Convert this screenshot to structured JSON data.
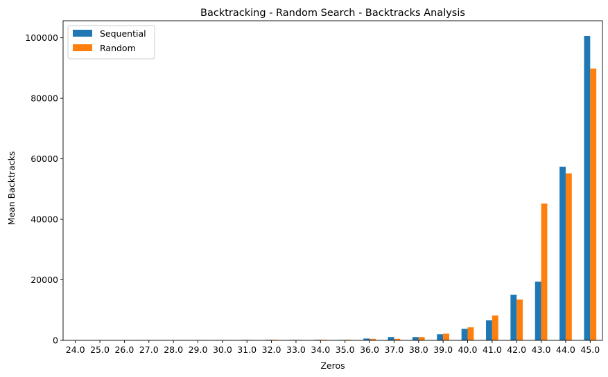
{
  "chart_data": {
    "type": "bar",
    "title": "Backtracking - Random Search - Backtracks Analysis",
    "xlabel": "Zeros",
    "ylabel": "Mean Backtracks",
    "categories": [
      "24.0",
      "25.0",
      "26.0",
      "27.0",
      "28.0",
      "29.0",
      "30.0",
      "31.0",
      "32.0",
      "33.0",
      "34.0",
      "35.0",
      "36.0",
      "37.0",
      "38.0",
      "39.0",
      "40.0",
      "41.0",
      "42.0",
      "43.0",
      "44.0",
      "45.0"
    ],
    "series": [
      {
        "name": "Sequential",
        "color": "#1f77b4",
        "values": [
          5,
          10,
          15,
          25,
          40,
          60,
          100,
          150,
          180,
          150,
          180,
          150,
          600,
          1100,
          1100,
          2000,
          3800,
          6600,
          15100,
          19400,
          57400,
          100600
        ]
      },
      {
        "name": "Random",
        "color": "#ff7f0e",
        "values": [
          5,
          10,
          15,
          25,
          40,
          60,
          100,
          150,
          180,
          150,
          180,
          200,
          500,
          500,
          1100,
          2200,
          4300,
          8200,
          13500,
          45200,
          55200,
          89800
        ]
      }
    ],
    "yticks": [
      0,
      20000,
      40000,
      60000,
      80000,
      100000
    ],
    "ylim": [
      0,
      105630
    ],
    "grid": false,
    "legend": "top-left"
  }
}
